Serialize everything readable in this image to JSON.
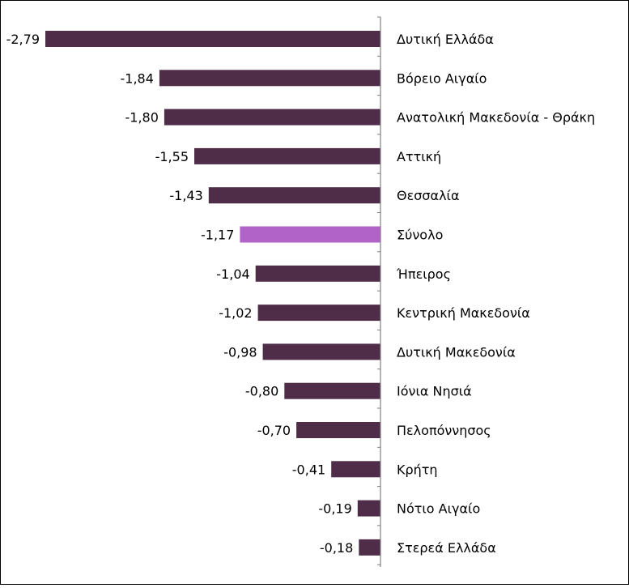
{
  "chart_data": {
    "type": "bar",
    "orientation": "horizontal",
    "categories": [
      "Δυτική Ελλάδα",
      "Βόρειο Αιγαίο",
      "Ανατολική Μακεδονία - Θράκη",
      "Αττική",
      "Θεσσαλία",
      "Σύνολο",
      "Ήπειρος",
      "Κεντρική Μακεδονία",
      "Δυτική Μακεδονία",
      "Ιόνια Νησιά",
      "Πελοπόννησος",
      "Κρήτη",
      "Νότιο Αιγαίο",
      "Στερεά Ελλάδα"
    ],
    "values": [
      -2.79,
      -1.84,
      -1.8,
      -1.55,
      -1.43,
      -1.17,
      -1.04,
      -1.02,
      -0.98,
      -0.8,
      -0.7,
      -0.41,
      -0.19,
      -0.18
    ],
    "value_labels": [
      "-2,79",
      "-1,84",
      "-1,80",
      "-1,55",
      "-1,43",
      "-1,17",
      "-1,04",
      "-1,02",
      "-0,98",
      "-0,80",
      "-0,70",
      "-0,41",
      "-0,19",
      "-0,18"
    ],
    "highlight_category": "Σύνολο",
    "xlim": [
      -2.9,
      0
    ],
    "grid": false,
    "legend": "none",
    "colors": {
      "bar": "#4f2d49",
      "highlight": "#b163c7",
      "axis": "#808080",
      "frame": "#000000",
      "text": "#000000"
    }
  }
}
